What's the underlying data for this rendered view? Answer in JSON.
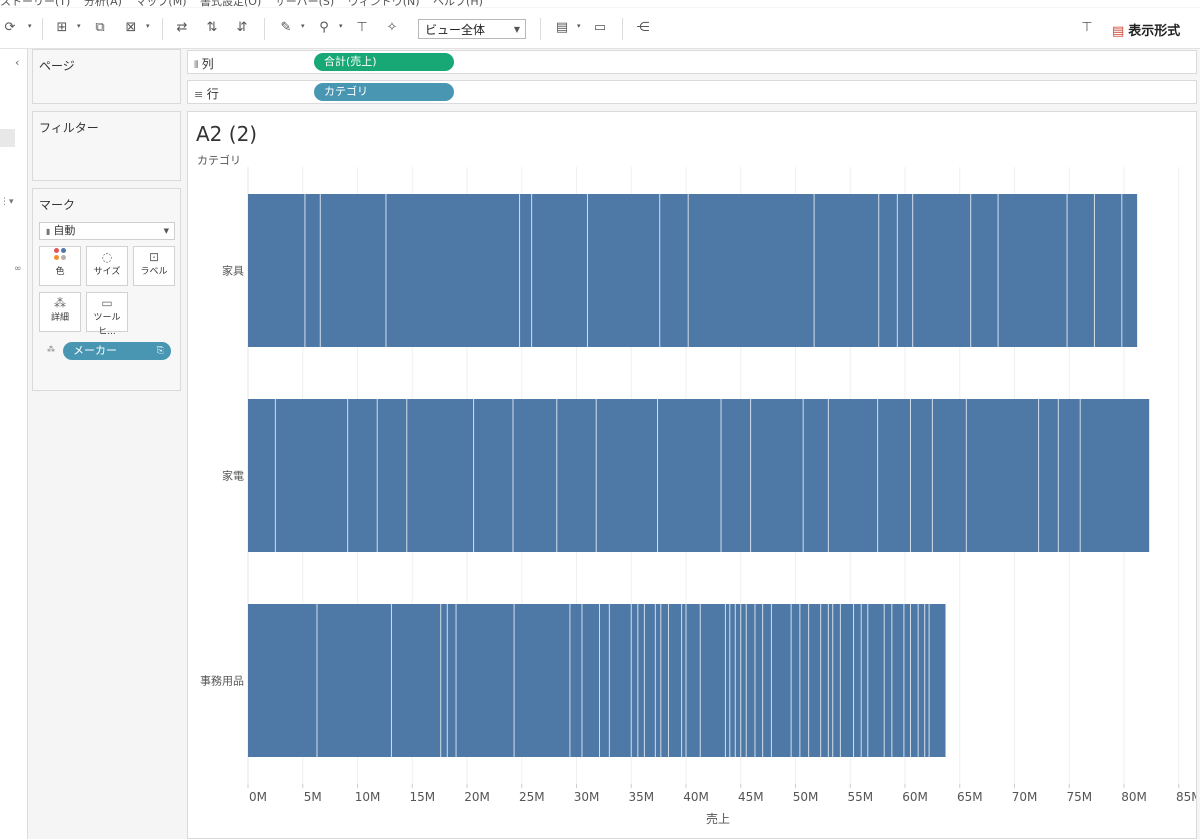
{
  "menu": [
    "ストーリー(T)",
    "分析(A)",
    "マップ(M)",
    "書式設定(O)",
    "サーバー(S)",
    "ウィンドウ(N)",
    "ヘルプ(H)"
  ],
  "toolbar": {
    "view_size": "ビュー全体",
    "show_me": "表示形式"
  },
  "cards": {
    "pages": "ページ",
    "filters": "フィルター",
    "marks": "マーク",
    "mark_type": "自動",
    "buttons": {
      "color": "色",
      "size": "サイズ",
      "label": "ラベル",
      "detail": "詳細",
      "tooltip": "ツールヒ..."
    },
    "detail_pill": "メーカー"
  },
  "shelves": {
    "columns_label": "列",
    "columns_pill": "合計(売上)",
    "rows_label": "行",
    "rows_pill": "カテゴリ"
  },
  "sheet": {
    "title": "A2 (2)",
    "row_header": "カテゴリ"
  },
  "colors": {
    "bar": "#4e79a7",
    "columns_pill": "#18a876",
    "rows_pill": "#4996b2"
  },
  "chart_data": {
    "type": "bar",
    "orientation": "horizontal",
    "stacked_by": "メーカー",
    "categories": [
      "家具",
      "家電",
      "事務用品"
    ],
    "values": [
      81.2,
      82.3,
      63.7
    ],
    "segment_boundaries": [
      [
        5.2,
        6.6,
        12.6,
        24.8,
        25.9,
        31.0,
        37.6,
        40.2,
        51.7,
        57.6,
        59.3,
        60.7,
        66.0,
        68.5,
        74.8,
        77.3,
        79.8
      ],
      [
        2.5,
        9.1,
        11.8,
        14.5,
        20.6,
        24.2,
        28.2,
        31.8,
        37.4,
        43.2,
        45.9,
        50.7,
        53.0,
        57.5,
        60.5,
        62.5,
        65.6,
        72.2,
        74.0,
        76.0
      ],
      [
        6.3,
        13.1,
        17.6,
        18.2,
        19.0,
        24.3,
        29.4,
        30.5,
        32.1,
        33.0,
        35.0,
        35.6,
        36.2,
        37.2,
        37.7,
        38.4,
        39.6,
        40.0,
        41.3,
        43.6,
        44.0,
        44.5,
        45.0,
        45.5,
        46.3,
        47.0,
        47.8,
        49.6,
        50.4,
        51.2,
        52.3,
        53.0,
        53.4,
        54.1,
        55.3,
        56.0,
        56.6,
        58.1,
        58.8,
        59.9,
        60.5,
        61.2,
        61.8,
        62.2
      ]
    ],
    "xlabel": "売上",
    "ylabel": "カテゴリ",
    "xticks": [
      "0M",
      "5M",
      "10M",
      "15M",
      "20M",
      "25M",
      "30M",
      "35M",
      "40M",
      "45M",
      "50M",
      "55M",
      "60M",
      "65M",
      "70M",
      "75M",
      "80M",
      "85M"
    ],
    "xlim": [
      0,
      85
    ],
    "grid": true
  }
}
